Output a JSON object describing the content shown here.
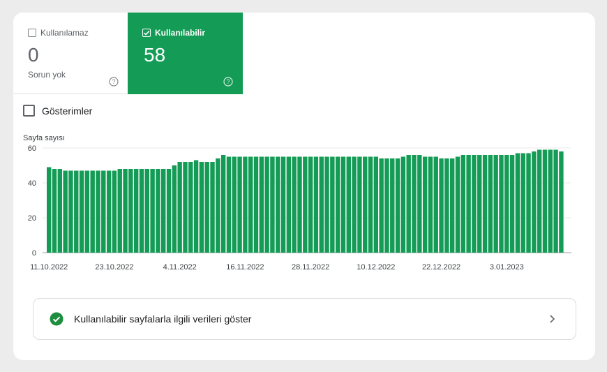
{
  "tabs": {
    "unusable": {
      "label": "Kullanılamaz",
      "value": "0",
      "sub": "Sorun yok",
      "checked": false
    },
    "usable": {
      "label": "Kullanılabilir",
      "value": "58",
      "checked": true,
      "color": "#149c56"
    }
  },
  "metric_toggle": {
    "label": "Gösterimler",
    "checked": false
  },
  "chart_data": {
    "type": "bar",
    "ylabel": "Sayfa sayısı",
    "ylim": [
      0,
      60
    ],
    "yticks": [
      0,
      20,
      40,
      60
    ],
    "xtick_labels": [
      "11.10.2022",
      "23.10.2022",
      "4.11.2022",
      "16.11.2022",
      "28.11.2022",
      "10.12.2022",
      "22.12.2022",
      "3.01.2023"
    ],
    "xtick_index": [
      0,
      12,
      24,
      36,
      48,
      60,
      72,
      84
    ],
    "color": "#149c56",
    "values": [
      49,
      48,
      48,
      47,
      47,
      47,
      47,
      47,
      47,
      47,
      47,
      47,
      47,
      48,
      48,
      48,
      48,
      48,
      48,
      48,
      48,
      48,
      48,
      50,
      52,
      52,
      52,
      53,
      52,
      52,
      52,
      54,
      56,
      55,
      55,
      55,
      55,
      55,
      55,
      55,
      55,
      55,
      55,
      55,
      55,
      55,
      55,
      55,
      55,
      55,
      55,
      55,
      55,
      55,
      55,
      55,
      55,
      55,
      55,
      55,
      55,
      54,
      54,
      54,
      54,
      55,
      56,
      56,
      56,
      55,
      55,
      55,
      54,
      54,
      54,
      55,
      56,
      56,
      56,
      56,
      56,
      56,
      56,
      56,
      56,
      56,
      57,
      57,
      57,
      58,
      59,
      59,
      59,
      59,
      58
    ]
  },
  "action": {
    "label": "Kullanılabilir sayfalarla ilgili verileri göster"
  }
}
